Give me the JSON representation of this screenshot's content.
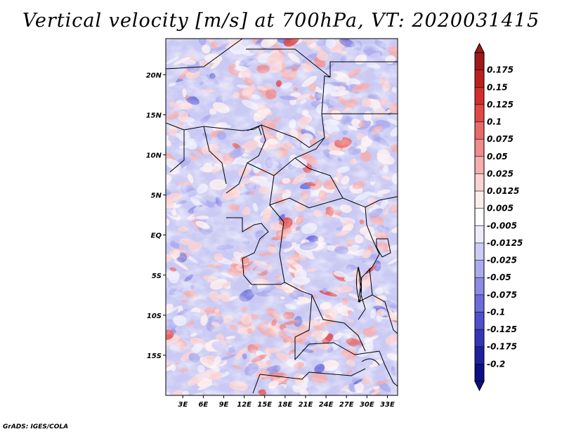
{
  "title": "Vertical velocity [m/s] at 700hPa, VT: 2020031415",
  "credit": "GrADS: IGES/COLA",
  "map": {
    "variable": "Vertical velocity",
    "units": "m/s",
    "level": "700hPa",
    "valid_time": "2020031415",
    "lat_labels": [
      "20N",
      "15N",
      "10N",
      "5N",
      "EQ",
      "5S",
      "10S",
      "15S"
    ],
    "lat_values": [
      20,
      15,
      10,
      5,
      0,
      -5,
      -10,
      -15
    ],
    "lon_labels": [
      "3E",
      "6E",
      "9E",
      "12E",
      "15E",
      "18E",
      "21E",
      "24E",
      "27E",
      "30E",
      "33E"
    ],
    "lon_values": [
      3,
      6,
      9,
      12,
      15,
      18,
      21,
      24,
      27,
      30,
      33
    ],
    "lon_range": [
      0.5,
      34.5
    ],
    "lat_range": [
      -20,
      24.5
    ]
  },
  "colorbar": {
    "labels": [
      "0.175",
      "0.15",
      "0.125",
      "0.1",
      "0.075",
      "0.05",
      "0.025",
      "0.0125",
      "0.005",
      "-0.005",
      "-0.0125",
      "-0.025",
      "-0.05",
      "-0.075",
      "-0.1",
      "-0.125",
      "-0.175",
      "-0.2"
    ],
    "colors": [
      "#a01818",
      "#bb2020",
      "#d22d2d",
      "#e04848",
      "#e86a6a",
      "#ef8c8c",
      "#f5aeae",
      "#fad2d2",
      "#fdeeee",
      "#ffffff",
      "#ececfd",
      "#ccccf6",
      "#ababee",
      "#8c8ce4",
      "#6c6cda",
      "#5050cc",
      "#3535b8",
      "#1f1fa0",
      "#0d0d85"
    ]
  }
}
